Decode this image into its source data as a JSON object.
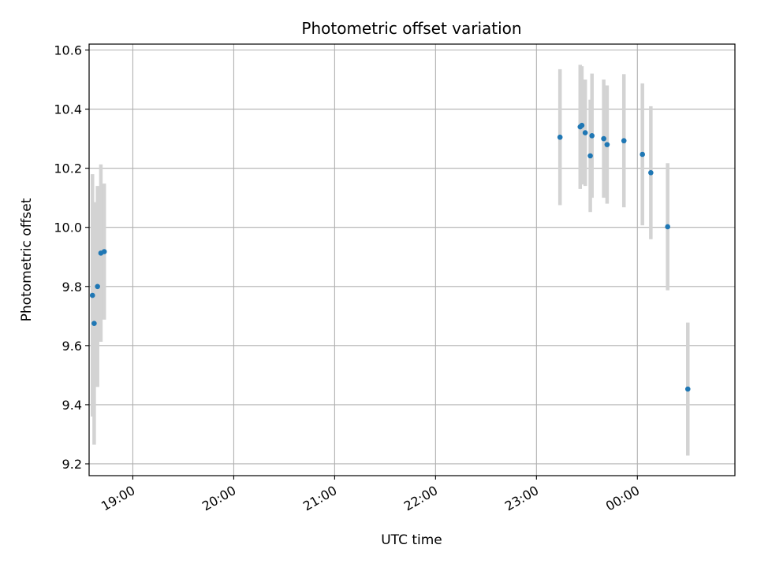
{
  "chart_data": {
    "type": "scatter",
    "title": "Photometric offset variation",
    "xlabel": "UTC time",
    "ylabel": "Photometric offset",
    "grid": true,
    "xlim": [
      "18:34",
      "00:58"
    ],
    "ylim": [
      9.16,
      10.62
    ],
    "x_ticks": [
      "19:00",
      "20:00",
      "21:00",
      "22:00",
      "23:00",
      "00:00"
    ],
    "y_ticks": [
      9.2,
      9.4,
      9.6,
      9.8,
      10.0,
      10.2,
      10.4,
      10.6
    ],
    "y_tick_labels": [
      "9.2",
      "9.4",
      "9.6",
      "9.8",
      "10.0",
      "10.2",
      "10.4",
      "10.6"
    ],
    "errorbar_color": "#d3d3d3",
    "point_color": "#1f77b4",
    "points": [
      {
        "time": "18:36",
        "y": 9.77,
        "yerr": 0.41
      },
      {
        "time": "18:37",
        "y": 9.675,
        "yerr": 0.41
      },
      {
        "time": "18:39",
        "y": 9.8,
        "yerr": 0.34
      },
      {
        "time": "18:41",
        "y": 9.913,
        "yerr": 0.3
      },
      {
        "time": "18:43",
        "y": 9.918,
        "yerr": 0.23
      },
      {
        "time": "23:14",
        "y": 10.305,
        "yerr": 0.23
      },
      {
        "time": "23:26",
        "y": 10.34,
        "yerr": 0.21
      },
      {
        "time": "23:27",
        "y": 10.345,
        "yerr": 0.2
      },
      {
        "time": "23:29",
        "y": 10.32,
        "yerr": 0.18
      },
      {
        "time": "23:32",
        "y": 10.242,
        "yerr": 0.19
      },
      {
        "time": "23:33",
        "y": 10.31,
        "yerr": 0.21
      },
      {
        "time": "23:40",
        "y": 10.3,
        "yerr": 0.2
      },
      {
        "time": "23:42",
        "y": 10.28,
        "yerr": 0.2
      },
      {
        "time": "23:52",
        "y": 10.293,
        "yerr": 0.225
      },
      {
        "time": "00:03",
        "y": 10.247,
        "yerr": 0.24
      },
      {
        "time": "00:08",
        "y": 10.185,
        "yerr": 0.225
      },
      {
        "time": "00:18",
        "y": 10.002,
        "yerr": 0.215
      },
      {
        "time": "00:30",
        "y": 9.453,
        "yerr": 0.225
      }
    ]
  }
}
